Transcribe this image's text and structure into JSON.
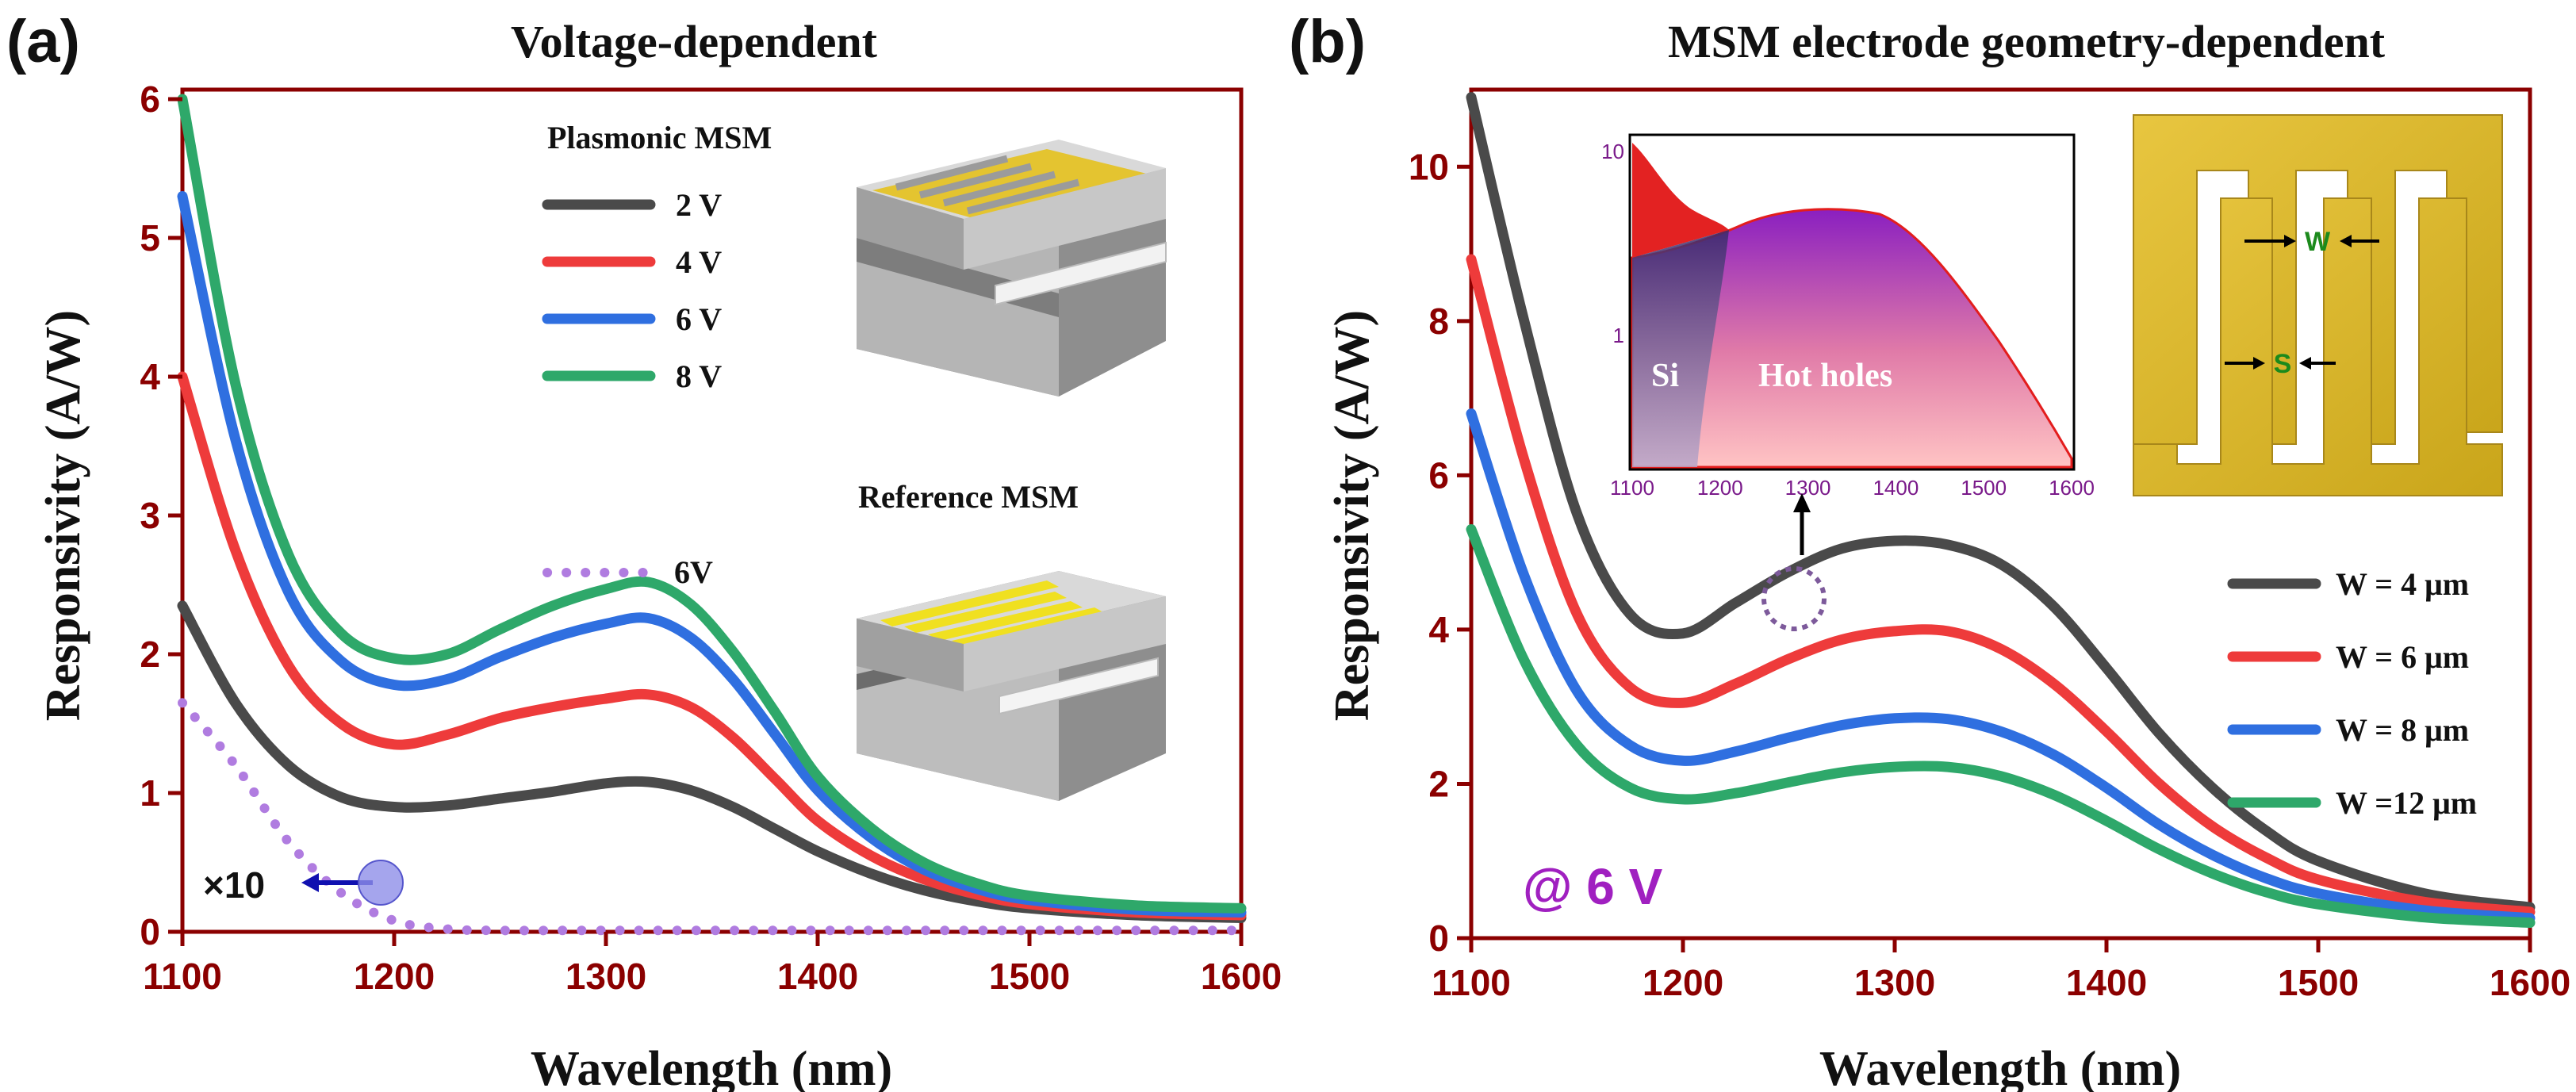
{
  "chart_data": [
    {
      "type": "line",
      "panel_label": "(a)",
      "title": "Voltage-dependent",
      "xlabel": "Wavelength (nm)",
      "ylabel": "Responsivity (A/W)",
      "xlim": [
        1100,
        1600
      ],
      "ylim": [
        0,
        6
      ],
      "xticks": [
        "1100",
        "1200",
        "1300",
        "1400",
        "1500",
        "1600"
      ],
      "yticks": [
        "0",
        "1",
        "2",
        "3",
        "4",
        "5",
        "6"
      ],
      "legend_title": "Plasmonic MSM",
      "reference_title": "Reference MSM",
      "multiplier_label": "×10",
      "x": [
        1100,
        1125,
        1150,
        1175,
        1200,
        1225,
        1250,
        1275,
        1300,
        1320,
        1340,
        1360,
        1380,
        1400,
        1425,
        1450,
        1475,
        1500,
        1550,
        1600
      ],
      "series": [
        {
          "name": "2 V",
          "color": "#4a4a4a",
          "values": [
            2.35,
            1.65,
            1.2,
            0.97,
            0.9,
            0.91,
            0.96,
            1.01,
            1.07,
            1.08,
            1.02,
            0.9,
            0.74,
            0.58,
            0.42,
            0.3,
            0.22,
            0.17,
            0.12,
            0.1
          ]
        },
        {
          "name": "4 V",
          "color": "#ee3b3b",
          "values": [
            4.0,
            2.75,
            1.92,
            1.5,
            1.35,
            1.42,
            1.54,
            1.62,
            1.68,
            1.71,
            1.62,
            1.4,
            1.1,
            0.8,
            0.55,
            0.38,
            0.27,
            0.2,
            0.14,
            0.12
          ]
        },
        {
          "name": "6 V",
          "color": "#2f6fe0",
          "values": [
            5.3,
            3.55,
            2.45,
            1.95,
            1.78,
            1.82,
            1.98,
            2.12,
            2.22,
            2.26,
            2.12,
            1.82,
            1.42,
            1.02,
            0.68,
            0.45,
            0.31,
            0.23,
            0.16,
            0.14
          ]
        },
        {
          "name": "8 V",
          "color": "#2ea86a",
          "values": [
            6.0,
            3.95,
            2.72,
            2.15,
            1.97,
            2.0,
            2.18,
            2.35,
            2.47,
            2.52,
            2.36,
            2.02,
            1.58,
            1.12,
            0.75,
            0.5,
            0.35,
            0.26,
            0.19,
            0.17
          ]
        },
        {
          "name": "6V",
          "color": "#b07ce0",
          "style": "dotted",
          "values": [
            1.65,
            1.2,
            0.65,
            0.28,
            0.08,
            0.02,
            0.01,
            0.01,
            0.01,
            0.01,
            0.01,
            0.01,
            0.01,
            0.01,
            0.01,
            0.01,
            0.01,
            0.01,
            0.01,
            0.01
          ]
        }
      ]
    },
    {
      "type": "line",
      "panel_label": "(b)",
      "title": "MSM electrode geometry-dependent",
      "xlabel": "Wavelength (nm)",
      "ylabel": "Responsivity (A/W)",
      "xlim": [
        1100,
        1600
      ],
      "ylim": [
        0,
        11
      ],
      "xticks": [
        "1100",
        "1200",
        "1300",
        "1400",
        "1500",
        "1600"
      ],
      "yticks": [
        "0",
        "2",
        "4",
        "6",
        "8",
        "10"
      ],
      "annotation": "@ 6 V",
      "x": [
        1100,
        1125,
        1150,
        1175,
        1200,
        1225,
        1250,
        1275,
        1300,
        1325,
        1350,
        1375,
        1400,
        1425,
        1450,
        1475,
        1500,
        1550,
        1600
      ],
      "series": [
        {
          "name": "W =  4 μm",
          "color": "#4a4a4a",
          "values": [
            10.9,
            8.0,
            5.5,
            4.2,
            3.95,
            4.35,
            4.75,
            5.05,
            5.15,
            5.1,
            4.85,
            4.3,
            3.5,
            2.65,
            1.95,
            1.4,
            1.0,
            0.58,
            0.4
          ]
        },
        {
          "name": "W =  6 μm",
          "color": "#ee3b3b",
          "values": [
            8.8,
            6.2,
            4.2,
            3.25,
            3.05,
            3.3,
            3.62,
            3.87,
            3.98,
            3.98,
            3.75,
            3.3,
            2.68,
            2.0,
            1.45,
            1.05,
            0.76,
            0.47,
            0.34
          ]
        },
        {
          "name": "W =  8 μm",
          "color": "#2f6fe0",
          "values": [
            6.8,
            4.7,
            3.2,
            2.5,
            2.3,
            2.42,
            2.6,
            2.76,
            2.85,
            2.84,
            2.68,
            2.38,
            1.95,
            1.47,
            1.08,
            0.78,
            0.58,
            0.36,
            0.26
          ]
        },
        {
          "name": "W =12 μm",
          "color": "#2ea86a",
          "values": [
            5.3,
            3.6,
            2.5,
            1.95,
            1.8,
            1.88,
            2.02,
            2.15,
            2.22,
            2.22,
            2.1,
            1.86,
            1.52,
            1.15,
            0.84,
            0.6,
            0.44,
            0.27,
            0.2
          ]
        }
      ]
    }
  ],
  "inset": {
    "xticks": [
      "1100",
      "1200",
      "1300",
      "1400",
      "1500",
      "1600"
    ],
    "yticks": [
      "10",
      "1"
    ],
    "label_si": "Si",
    "label_hot": "Hot holes"
  },
  "electrode": {
    "label_w": "W",
    "label_s": "S"
  }
}
